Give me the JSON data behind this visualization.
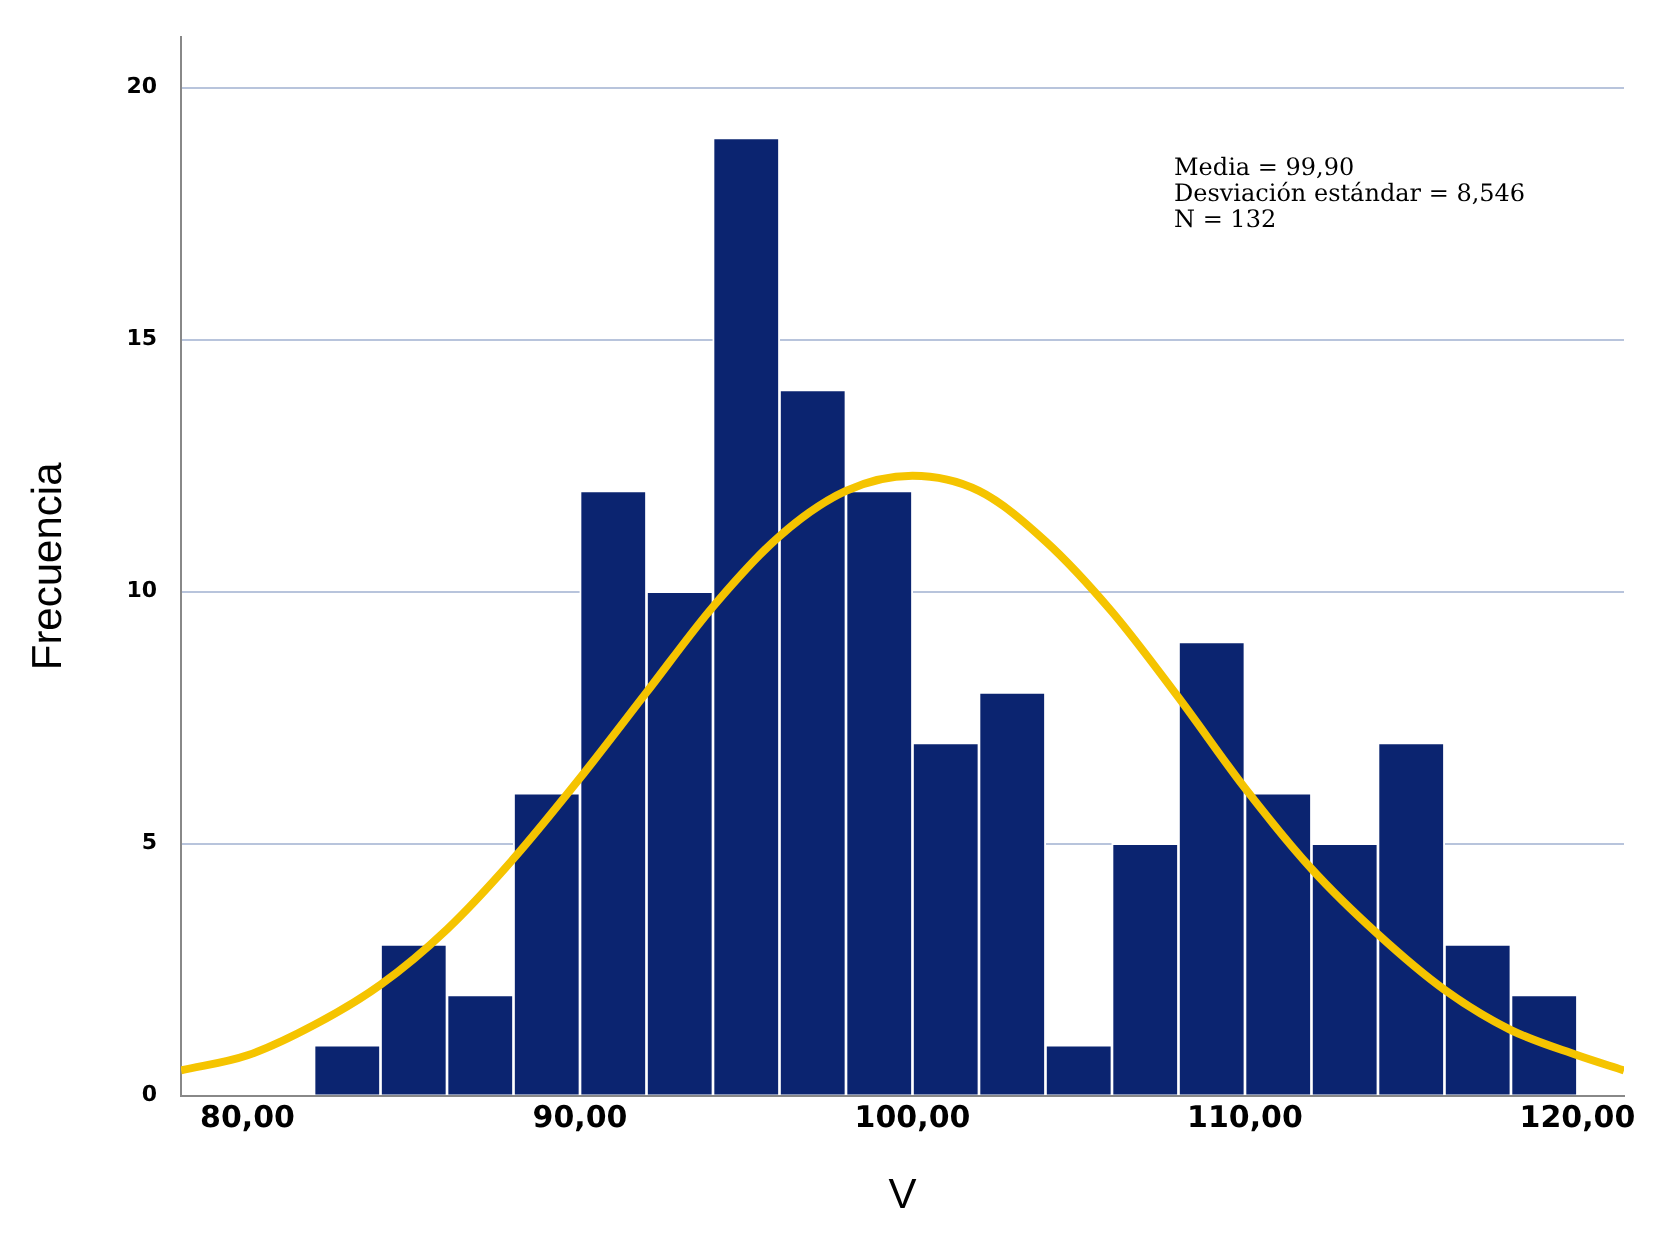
{
  "chart_data": {
    "type": "histogram",
    "xlabel": "V",
    "ylabel": "Frecuencia",
    "bins": [
      82,
      84,
      86,
      88,
      90,
      92,
      94,
      96,
      98,
      100,
      102,
      104,
      106,
      108,
      110,
      112,
      114,
      116,
      118,
      120
    ],
    "values": [
      1,
      3,
      2,
      6,
      12,
      10,
      19,
      14,
      12,
      7,
      8,
      1,
      5,
      9,
      6,
      5,
      7,
      3,
      2
    ],
    "color": "#0b2470",
    "series": [
      {
        "type": "line",
        "color": "#f5c400",
        "x": [
          78,
          80,
          82,
          84,
          86,
          88,
          90,
          92,
          94,
          96,
          98,
          100,
          102,
          104,
          106,
          108,
          110,
          112,
          114,
          116,
          118,
          120,
          121.4
        ],
        "values": [
          0.5,
          0.8,
          1.4,
          2.2,
          3.3,
          4.7,
          6.3,
          8.0,
          9.7,
          11.1,
          12.0,
          12.3,
          12.0,
          11.0,
          9.6,
          7.9,
          6.1,
          4.5,
          3.2,
          2.1,
          1.3,
          0.8,
          0.5
        ]
      }
    ],
    "xlim": [
      78,
      121.4
    ],
    "xticks": [
      {
        "value": 80,
        "label": "80,00"
      },
      {
        "value": 90,
        "label": "90,00"
      },
      {
        "value": 100,
        "label": "100,00"
      },
      {
        "value": 110,
        "label": "110,00"
      },
      {
        "value": 120,
        "label": "120,00"
      }
    ],
    "ylim": [
      0,
      21
    ],
    "yticks": [
      0,
      5,
      10,
      15,
      20
    ],
    "grid": "y",
    "legend": false,
    "annotations": [
      "Media = 99,90",
      "Desviación estándar = 8,546",
      "N = 132"
    ]
  }
}
